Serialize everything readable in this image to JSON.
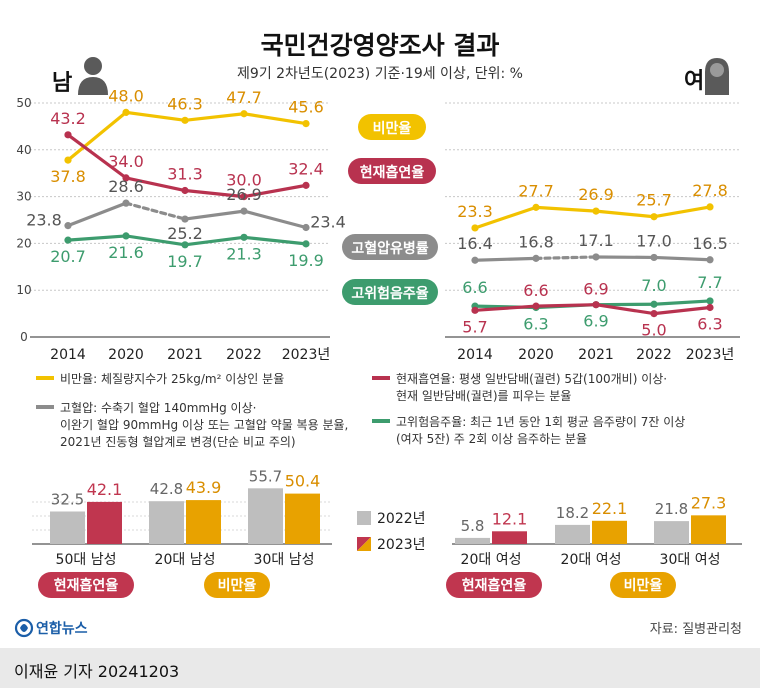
{
  "title": "국민건강영양조사 결과",
  "subtitle": "제9기 2차년도(2023) 기준·19세 이상, 단위: %",
  "men_label": "남",
  "women_label": "여",
  "source": "자료: 질병관리청",
  "logo_text": "연합뉴스",
  "byline": "이재윤 기자  20241203",
  "colors": {
    "obesity": "#F2C200",
    "smoking": "#B8324F",
    "bp": "#8C8C8C",
    "drink": "#3D9C6E",
    "obesity_label": "#D98E00",
    "bar2022": "#BEBEBE",
    "bar_obesity": "#E8A200",
    "bar_smoking": "#C0364F"
  },
  "series_labels": {
    "obesity": "비만율",
    "smoking": "현재흡연율",
    "bp": "고혈압유병률",
    "drink": "고위험음주율"
  },
  "legend": [
    {
      "key": "obesity",
      "lines": [
        "비만율: 체질량지수가 25kg/m² 이상인 분율"
      ]
    },
    {
      "key": "smoking",
      "lines": [
        "현재흡연율: 평생 일반담배(궐련) 5갑(100개비) 이상·",
        "현재 일반담배(궐련)를 피우는 분율"
      ]
    },
    {
      "key": "bp",
      "lines": [
        "고혈압: 수축기 혈압 140mmHg 이상·",
        "이완기 혈압 90mmHg 이상 또는 고혈압 약물 복용 분율,",
        "2021년 진동형 혈압계로 변경(단순 비교 주의)"
      ]
    },
    {
      "key": "drink",
      "lines": [
        "고위험음주율: 최근 1년 동안 1회 평균 음주량이 7잔 이상",
        "(여자 5잔) 주 2회 이상 음주하는 분율"
      ]
    }
  ],
  "chart_data": [
    {
      "type": "line",
      "panel": "남",
      "categories": [
        "2014",
        "2020",
        "2021",
        "2022",
        "2023년"
      ],
      "ylim": [
        0,
        50
      ],
      "yticks": [
        "0",
        "10",
        "20",
        "30",
        "40",
        "50"
      ],
      "series": [
        {
          "key": "obesity",
          "name": "비만율",
          "values": [
            37.8,
            48.0,
            46.3,
            47.7,
            45.6
          ],
          "labels": [
            "37.8",
            "48.0",
            "46.3",
            "47.7",
            "45.6"
          ]
        },
        {
          "key": "smoking",
          "name": "현재흡연율",
          "values": [
            43.2,
            34.0,
            31.3,
            30.0,
            32.4
          ],
          "labels": [
            "43.2",
            "34.0",
            "31.3",
            "30.0",
            "32.4"
          ]
        },
        {
          "key": "bp",
          "name": "고혈압유병률",
          "values": [
            23.8,
            28.6,
            25.2,
            26.9,
            23.4
          ],
          "labels": [
            "23.8",
            "28.6",
            "25.2",
            "26.9",
            "23.4"
          ],
          "dashed_segment": [
            1,
            2
          ]
        },
        {
          "key": "drink",
          "name": "고위험음주율",
          "values": [
            20.7,
            21.6,
            19.7,
            21.3,
            19.9
          ],
          "labels": [
            "20.7",
            "21.6",
            "19.7",
            "21.3",
            "19.9"
          ]
        }
      ]
    },
    {
      "type": "line",
      "panel": "여",
      "categories": [
        "2014",
        "2020",
        "2021",
        "2022",
        "2023년"
      ],
      "ylim": [
        0,
        50
      ],
      "series": [
        {
          "key": "obesity",
          "name": "비만율",
          "values": [
            23.3,
            27.7,
            26.9,
            25.7,
            27.8
          ],
          "labels": [
            "23.3",
            "27.7",
            "26.9",
            "25.7",
            "27.8"
          ]
        },
        {
          "key": "bp",
          "name": "고혈압유병률",
          "values": [
            16.4,
            16.8,
            17.1,
            17.0,
            16.5
          ],
          "labels": [
            "16.4",
            "16.8",
            "17.1",
            "17.0",
            "16.5"
          ],
          "dashed_segment": [
            1,
            2
          ]
        },
        {
          "key": "drink",
          "name": "고위험음주율",
          "values": [
            6.6,
            6.3,
            6.9,
            7.0,
            7.7
          ],
          "labels": [
            "6.6",
            "6.3",
            "6.9",
            "7.0",
            "7.7"
          ]
        },
        {
          "key": "smoking",
          "name": "현재흡연율",
          "values": [
            5.7,
            6.6,
            6.9,
            5.0,
            6.3
          ],
          "labels": [
            "5.7",
            "6.6",
            "6.9",
            "5.0",
            "6.3"
          ]
        }
      ]
    },
    {
      "type": "bar",
      "panel": "남",
      "categories": [
        "50대 남성",
        "20대 남성",
        "30대 남성"
      ],
      "series": [
        {
          "name": "2022년",
          "values": [
            32.5,
            42.8,
            55.7
          ]
        },
        {
          "name": "2023년",
          "values": [
            42.1,
            43.9,
            50.4
          ]
        }
      ],
      "bar2023_color": [
        "smoking",
        "obesity",
        "obesity"
      ],
      "value_labels": [
        [
          "32.5",
          "42.8",
          "55.7"
        ],
        [
          "42.1",
          "43.9",
          "50.4"
        ]
      ]
    },
    {
      "type": "bar",
      "panel": "여",
      "categories": [
        "20대 여성",
        "20대 여성",
        "30대 여성"
      ],
      "series": [
        {
          "name": "2022년",
          "values": [
            5.8,
            18.2,
            21.8
          ]
        },
        {
          "name": "2023년",
          "values": [
            12.1,
            22.1,
            27.3
          ]
        }
      ],
      "bar2023_color": [
        "smoking",
        "obesity",
        "obesity"
      ],
      "value_labels": [
        [
          "5.8",
          "18.2",
          "21.8"
        ],
        [
          "12.1",
          "22.1",
          "27.3"
        ]
      ]
    }
  ],
  "bar_legend": [
    "2022년",
    "2023년"
  ],
  "bar_badges_men": [
    "현재흡연율",
    "비만율"
  ],
  "bar_badges_women": [
    "현재흡연율",
    "비만율"
  ]
}
